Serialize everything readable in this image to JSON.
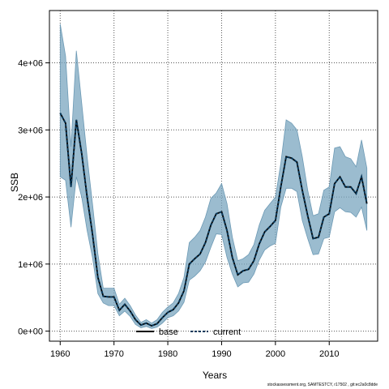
{
  "chart_data": {
    "type": "line",
    "xlabel": "Years",
    "ylabel": "SSB",
    "xlim": [
      1958,
      2019
    ],
    "ylim": [
      -150000,
      4780000
    ],
    "x_ticks": [
      1960,
      1970,
      1980,
      1990,
      2000,
      2010
    ],
    "y_ticks": [
      0,
      1000000,
      2000000,
      3000000,
      4000000
    ],
    "y_tick_labels": [
      "0e+00",
      "1e+06",
      "2e+06",
      "3e+06",
      "4e+06"
    ],
    "grid": true,
    "legend_position": "bottom-center",
    "footnote": "stockassessment.org, SAMTESTCY, r17502 , git:ec2a0c8dde",
    "colors": {
      "band": "#7aa6bf",
      "band_edge": "#6d9ab5",
      "base": "#000000",
      "current": "#0a3a5c"
    },
    "years": [
      1960,
      1961,
      1962,
      1963,
      1964,
      1965,
      1966,
      1967,
      1968,
      1969,
      1970,
      1971,
      1972,
      1973,
      1974,
      1975,
      1976,
      1977,
      1978,
      1979,
      1980,
      1981,
      1982,
      1983,
      1984,
      1985,
      1986,
      1987,
      1988,
      1989,
      1990,
      1991,
      1992,
      1993,
      1994,
      1995,
      1996,
      1997,
      1998,
      1999,
      2000,
      2001,
      2002,
      2003,
      2004,
      2005,
      2006,
      2007,
      2008,
      2009,
      2010,
      2011,
      2012,
      2013,
      2014,
      2015,
      2016,
      2017
    ],
    "series": [
      {
        "name": "base",
        "style": "solid",
        "values": [
          3250000,
          3100000,
          2150000,
          3150000,
          2650000,
          2000000,
          1450000,
          800000,
          520000,
          510000,
          510000,
          310000,
          400000,
          300000,
          170000,
          90000,
          120000,
          80000,
          110000,
          200000,
          280000,
          320000,
          420000,
          600000,
          1000000,
          1080000,
          1150000,
          1320000,
          1580000,
          1750000,
          1780000,
          1500000,
          1100000,
          840000,
          900000,
          920000,
          1050000,
          1300000,
          1480000,
          1560000,
          1650000,
          2150000,
          2600000,
          2580000,
          2520000,
          2100000,
          1720000,
          1380000,
          1400000,
          1700000,
          1750000,
          2200000,
          2300000,
          2150000,
          2150000,
          2050000,
          2300000,
          1900000
        ]
      },
      {
        "name": "current",
        "style": "dashed",
        "values": [
          3250000,
          3100000,
          2150000,
          3150000,
          2650000,
          2000000,
          1450000,
          800000,
          520000,
          510000,
          510000,
          310000,
          400000,
          300000,
          170000,
          90000,
          120000,
          80000,
          110000,
          200000,
          280000,
          320000,
          420000,
          600000,
          1000000,
          1080000,
          1150000,
          1320000,
          1580000,
          1750000,
          1780000,
          1500000,
          1100000,
          840000,
          900000,
          920000,
          1050000,
          1300000,
          1480000,
          1560000,
          1650000,
          2150000,
          2600000,
          2580000,
          2520000,
          2100000,
          1720000,
          1380000,
          1400000,
          1700000,
          1750000,
          2200000,
          2300000,
          2150000,
          2150000,
          2050000,
          2300000,
          1900000
        ]
      }
    ],
    "band": {
      "upper": [
        4580000,
        4100000,
        2750000,
        4180000,
        3400000,
        2600000,
        1900000,
        1150000,
        640000,
        640000,
        640000,
        400000,
        490000,
        380000,
        240000,
        130000,
        170000,
        120000,
        170000,
        280000,
        360000,
        420000,
        560000,
        800000,
        1320000,
        1400000,
        1500000,
        1700000,
        1980000,
        2060000,
        2200000,
        1900000,
        1400000,
        1050000,
        1080000,
        1140000,
        1290000,
        1580000,
        1800000,
        1900000,
        2000000,
        2500000,
        3150000,
        3100000,
        3000000,
        2600000,
        2100000,
        1720000,
        1750000,
        2100000,
        2150000,
        2730000,
        2750000,
        2600000,
        2570000,
        2450000,
        2850000,
        2430000
      ],
      "lower": [
        2300000,
        2250000,
        1550000,
        2300000,
        2000000,
        1500000,
        1100000,
        560000,
        420000,
        380000,
        380000,
        230000,
        300000,
        220000,
        100000,
        50000,
        70000,
        40000,
        60000,
        120000,
        200000,
        230000,
        300000,
        430000,
        760000,
        820000,
        900000,
        1030000,
        1250000,
        1450000,
        1440000,
        1100000,
        850000,
        660000,
        720000,
        730000,
        850000,
        1060000,
        1210000,
        1270000,
        1310000,
        1850000,
        2130000,
        2130000,
        2080000,
        1650000,
        1380000,
        1140000,
        1150000,
        1380000,
        1400000,
        1780000,
        1840000,
        1780000,
        1770000,
        1700000,
        1850000,
        1500000
      ]
    }
  }
}
